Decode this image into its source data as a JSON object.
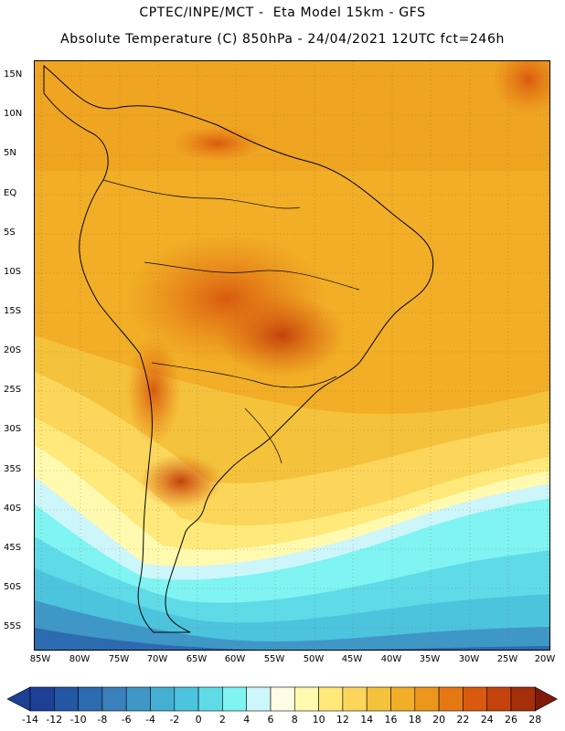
{
  "title": {
    "line1": "CPTEC/INPE/MCT -  Eta Model 15km - GFS",
    "line2": "Absolute Temperature (C) 850hPa - 24/04/2021 12UTC fct=246h"
  },
  "map": {
    "region": "South America",
    "lat_labels": [
      "15N",
      "10N",
      "5N",
      "EQ",
      "5S",
      "10S",
      "15S",
      "20S",
      "25S",
      "30S",
      "35S",
      "40S",
      "45S",
      "50S",
      "55S"
    ],
    "lon_labels": [
      "85W",
      "80W",
      "75W",
      "70W",
      "65W",
      "60W",
      "55W",
      "50W",
      "45W",
      "40W",
      "35W",
      "30W",
      "25W",
      "20W"
    ],
    "grid": "dotted"
  },
  "colorbar": {
    "labels": [
      "-14",
      "-12",
      "-10",
      "-8",
      "-6",
      "-4",
      "-2",
      "0",
      "2",
      "4",
      "6",
      "8",
      "10",
      "12",
      "14",
      "16",
      "18",
      "20",
      "22",
      "24",
      "26",
      "28"
    ],
    "colors": [
      "#1d3f94",
      "#2356a3",
      "#2c6bb0",
      "#3a80bd",
      "#3f97c8",
      "#44aed3",
      "#4cc4de",
      "#5fdbe8",
      "#7ff4f2",
      "#cdf6fa",
      "#fffbe5",
      "#fffab0",
      "#ffe97a",
      "#fbd65a",
      "#f5c23c",
      "#f1ae26",
      "#ec961c",
      "#e67813",
      "#d95a0e",
      "#c4420b",
      "#a52f0a",
      "#7f1a0a"
    ]
  }
}
